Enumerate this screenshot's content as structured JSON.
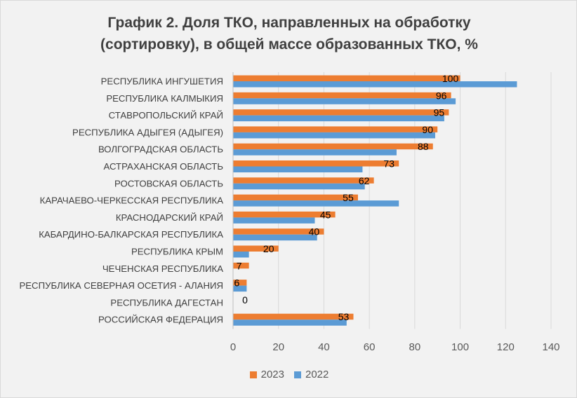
{
  "chart_data": {
    "type": "bar",
    "orientation": "horizontal",
    "title_lines": [
      "График 2. Доля ТКО, направленных на обработку",
      "(сортировку), в общей массе образованных ТКО, %"
    ],
    "categories": [
      "РЕСПУБЛИКА ИНГУШЕТИЯ",
      "РЕСПУБЛИКА КАЛМЫКИЯ",
      "СТАВРОПОЛЬСКИЙ КРАЙ",
      "РЕСПУБЛИКА АДЫГЕЯ (АДЫГЕЯ)",
      "ВОЛГОГРАДСКАЯ ОБЛАСТЬ",
      "АСТРАХАНСКАЯ ОБЛАСТЬ",
      "РОСТОВСКАЯ ОБЛАСТЬ",
      "КАРАЧАЕВО-ЧЕРКЕССКАЯ РЕСПУБЛИКА",
      "КРАСНОДАРСКИЙ КРАЙ",
      "КАБАРДИНО-БАЛКАРСКАЯ РЕСПУБЛИКА",
      "РЕСПУБЛИКА КРЫМ",
      "ЧЕЧЕНСКАЯ РЕСПУБЛИКА",
      "РЕСПУБЛИКА СЕВЕРНАЯ ОСЕТИЯ - АЛАНИЯ",
      "РЕСПУБЛИКА ДАГЕСТАН",
      "РОССИЙСКАЯ ФЕДЕРАЦИЯ"
    ],
    "series": [
      {
        "name": "2023",
        "color": "#ed7d31",
        "values": [
          100,
          96,
          95,
          90,
          88,
          73,
          62,
          55,
          45,
          40,
          20,
          7,
          6,
          0,
          53
        ],
        "labels": [
          "100",
          "96",
          "95",
          "90",
          "88",
          "73",
          "62",
          "55",
          "45",
          "40",
          "20",
          "7",
          "6",
          "0",
          "53"
        ]
      },
      {
        "name": "2022",
        "color": "#5b9bd5",
        "values": [
          125,
          98,
          93,
          89,
          72,
          57,
          58,
          73,
          36,
          37,
          7,
          0,
          6,
          0,
          50
        ]
      }
    ],
    "xlim": [
      0,
      140
    ],
    "xticks": [
      "0",
      "20",
      "40",
      "60",
      "80",
      "100",
      "120",
      "140"
    ],
    "grid": true,
    "legend_position": "bottom"
  }
}
